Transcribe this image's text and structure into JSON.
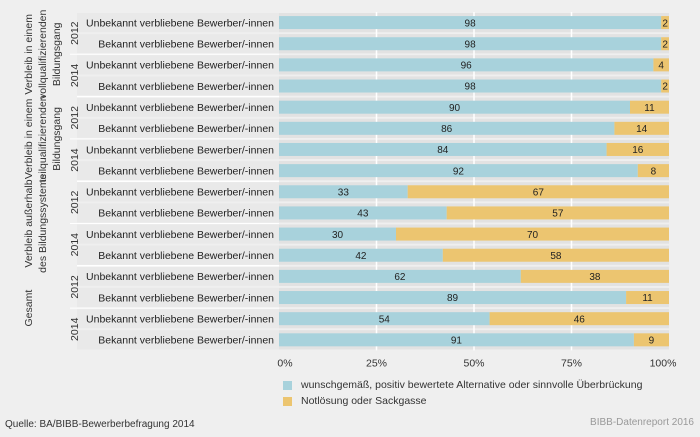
{
  "colors": {
    "positive": "#a8d2dc",
    "negative": "#ecc570",
    "row_bg": "#e2e2e2",
    "row_bg_alt": "#ebebeb"
  },
  "chart_data": {
    "type": "bar",
    "orientation": "horizontal",
    "stacked": true,
    "title": "",
    "xlabel": "",
    "ylabel": "",
    "xlim": [
      0,
      100
    ],
    "x_ticks": [
      "0%",
      "25%",
      "50%",
      "75%",
      "100%"
    ],
    "grid": true,
    "legend_position": "bottom",
    "groups": [
      {
        "label": [
          "Verbleib in einem",
          "vollqualifizierenden",
          "Bildungsgang"
        ],
        "years": [
          "2012",
          "2014"
        ]
      },
      {
        "label": [
          "Verbleib in einem",
          "teilqualifizierenden",
          "Bildungsgang"
        ],
        "years": [
          "2012",
          "2014"
        ]
      },
      {
        "label": [
          "Verbleib außerhalb",
          "des Bildungssystems"
        ],
        "years": [
          "2012",
          "2014"
        ]
      },
      {
        "label": [
          "Gesamt"
        ],
        "years": [
          "2012",
          "2014"
        ]
      }
    ],
    "categories": [
      "Unbekannt verbliebene Bewerber/-innen",
      "Bekannt verbliebene Bewerber/-innen",
      "Unbekannt verbliebene Bewerber/-innen",
      "Bekannt verbliebene Bewerber/-innen",
      "Unbekannt verbliebene Bewerber/-innen",
      "Bekannt verbliebene Bewerber/-innen",
      "Unbekannt verbliebene Bewerber/-innen",
      "Bekannt verbliebene Bewerber/-innen",
      "Unbekannt verbliebene Bewerber/-innen",
      "Bekannt verbliebene Bewerber/-innen",
      "Unbekannt verbliebene Bewerber/-innen",
      "Bekannt verbliebene Bewerber/-innen",
      "Unbekannt verbliebene Bewerber/-innen",
      "Bekannt verbliebene Bewerber/-innen",
      "Unbekannt verbliebene Bewerber/-innen",
      "Bekannt verbliebene Bewerber/-innen"
    ],
    "series": [
      {
        "name": "wunschgemäß, positiv bewertete Alternative oder sinnvolle Überbrückung",
        "values": [
          98,
          98,
          96,
          98,
          90,
          86,
          84,
          92,
          33,
          43,
          30,
          42,
          62,
          89,
          54,
          91
        ]
      },
      {
        "name": "Notlösung oder Sackgasse",
        "values": [
          2,
          2,
          4,
          2,
          11,
          14,
          16,
          8,
          67,
          57,
          70,
          58,
          38,
          11,
          46,
          9
        ]
      }
    ]
  },
  "footer": {
    "source": "Quelle: BA/BIBB-Bewerberbefragung 2014",
    "credit": "BIBB-Datenreport 2016"
  }
}
